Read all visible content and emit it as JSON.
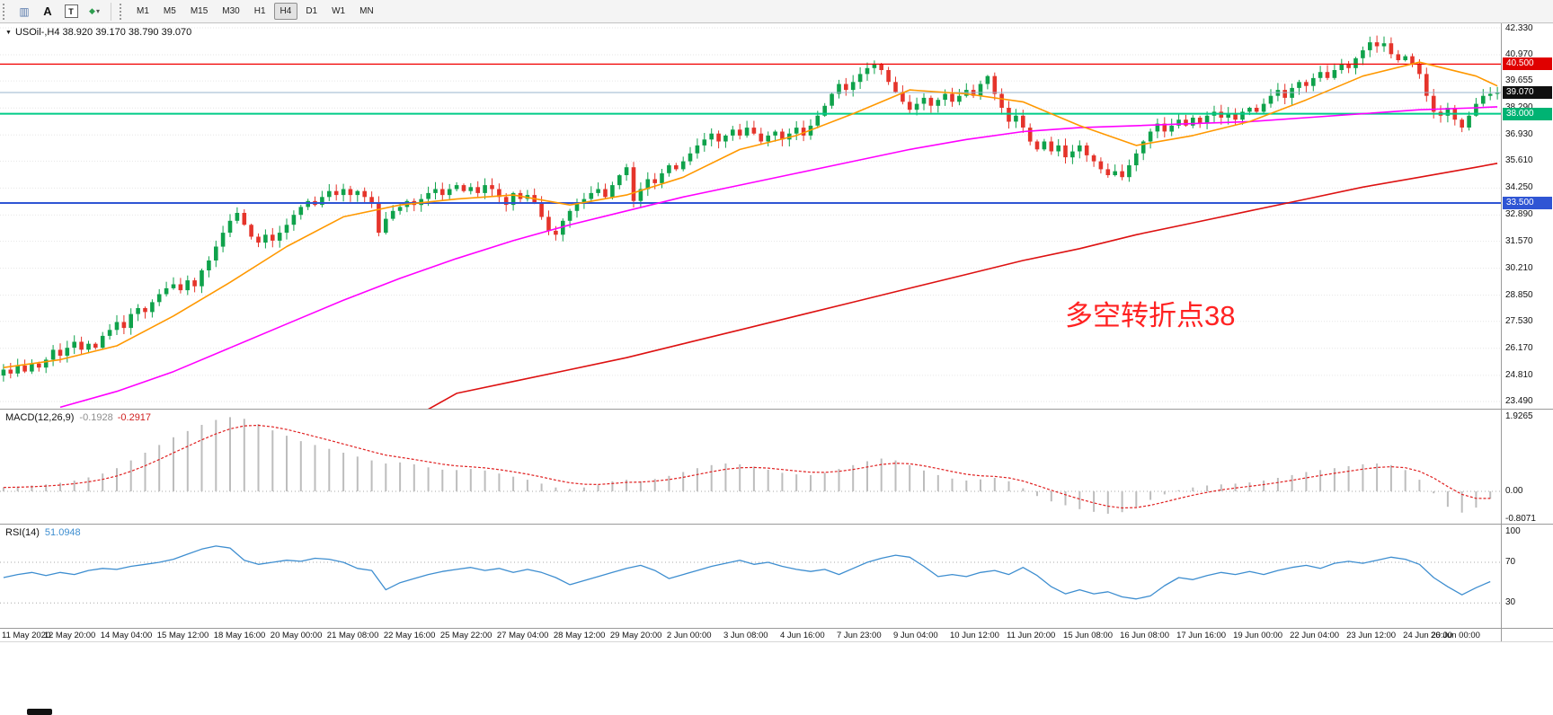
{
  "toolbar": {
    "tools": [
      {
        "name": "chart-windows-icon",
        "glyph": "▥"
      },
      {
        "name": "text-annotation-icon",
        "glyph": "A"
      },
      {
        "name": "text-box-icon",
        "glyph": "T"
      },
      {
        "name": "objects-list-icon",
        "glyph": "◆",
        "caret": "▾"
      }
    ],
    "timeframes": [
      {
        "label": "M1",
        "active": false
      },
      {
        "label": "M5",
        "active": false
      },
      {
        "label": "M15",
        "active": false
      },
      {
        "label": "M30",
        "active": false
      },
      {
        "label": "H1",
        "active": false
      },
      {
        "label": "H4",
        "active": true
      },
      {
        "label": "D1",
        "active": false
      },
      {
        "label": "W1",
        "active": false
      },
      {
        "label": "MN",
        "active": false
      }
    ]
  },
  "chart": {
    "symbol_line": "USOil-,H4 38.920 39.170 38.790 39.070",
    "collapse_icon": "▼",
    "annotation": {
      "text": "多空转折点38",
      "color": "#ff2222"
    },
    "price_max": 42.33,
    "price_min": 23.49,
    "axis_ticks": [
      42.33,
      40.97,
      39.655,
      38.29,
      36.93,
      35.61,
      34.25,
      32.89,
      31.57,
      30.21,
      28.85,
      27.53,
      26.17,
      24.81,
      23.49
    ],
    "levels": [
      {
        "price": 40.5,
        "label": "40.500",
        "color": "#f20000",
        "badge": "#e00000",
        "width": 1.2
      },
      {
        "price": 39.07,
        "label": "39.070",
        "color": "#9ab4cc",
        "badge": "#101010",
        "width": 1
      },
      {
        "price": 38.0,
        "label": "38.000",
        "color": "#00cc88",
        "badge": "#00b373",
        "width": 2
      },
      {
        "price": 33.5,
        "label": "33.500",
        "color": "#2f55d4",
        "badge": "#2f55d4",
        "width": 2
      }
    ],
    "chart_data": {
      "type": "candlestick",
      "symbol": "USOil-",
      "timeframe": "H4",
      "ohlc_note": "H4 closes estimated from chart; opens = prior close",
      "closes": [
        25.1,
        24.9,
        25.3,
        25.0,
        25.4,
        25.2,
        25.6,
        26.1,
        25.8,
        26.2,
        26.5,
        26.1,
        26.4,
        26.2,
        26.8,
        27.1,
        27.5,
        27.2,
        27.9,
        28.2,
        28.0,
        28.5,
        28.9,
        29.2,
        29.4,
        29.1,
        29.6,
        29.3,
        30.1,
        30.6,
        31.3,
        32.0,
        32.6,
        33.0,
        32.4,
        31.8,
        31.5,
        31.9,
        31.6,
        32.0,
        32.4,
        32.9,
        33.3,
        33.6,
        33.4,
        33.8,
        34.1,
        33.9,
        34.2,
        33.9,
        34.1,
        33.8,
        33.5,
        32.0,
        32.7,
        33.1,
        33.3,
        33.6,
        33.4,
        33.7,
        34.0,
        34.2,
        33.9,
        34.2,
        34.4,
        34.1,
        34.3,
        34.0,
        34.4,
        34.2,
        33.8,
        33.4,
        34.0,
        33.7,
        33.9,
        33.5,
        32.8,
        32.1,
        31.9,
        32.6,
        33.1,
        33.5,
        33.7,
        34.0,
        34.2,
        33.8,
        34.4,
        34.9,
        35.3,
        33.6,
        34.2,
        34.7,
        34.5,
        35.0,
        35.4,
        35.2,
        35.6,
        36.0,
        36.4,
        36.7,
        37.0,
        36.6,
        36.9,
        37.2,
        36.9,
        37.3,
        37.0,
        36.6,
        36.9,
        37.1,
        36.7,
        37.0,
        37.3,
        36.9,
        37.4,
        37.9,
        38.4,
        39.0,
        39.5,
        39.2,
        39.6,
        40.0,
        40.3,
        40.5,
        40.2,
        39.6,
        39.1,
        38.6,
        38.2,
        38.5,
        38.8,
        38.4,
        38.7,
        39.0,
        38.6,
        38.9,
        39.2,
        38.9,
        39.5,
        39.9,
        39.0,
        38.3,
        37.6,
        37.9,
        37.3,
        36.6,
        36.2,
        36.6,
        36.1,
        36.4,
        35.8,
        36.1,
        36.4,
        35.9,
        35.6,
        35.2,
        34.9,
        35.1,
        34.8,
        35.4,
        36.0,
        36.6,
        37.1,
        37.5,
        37.1,
        37.4,
        37.7,
        37.4,
        37.8,
        37.5,
        37.9,
        38.1,
        37.8,
        38.0,
        37.7,
        38.1,
        38.3,
        38.1,
        38.5,
        38.9,
        39.2,
        38.8,
        39.3,
        39.6,
        39.4,
        39.8,
        40.1,
        39.8,
        40.2,
        40.5,
        40.3,
        40.8,
        41.2,
        41.6,
        41.4,
        41.55,
        41.0,
        40.7,
        40.9,
        40.5,
        40.0,
        38.9,
        38.1,
        37.9,
        38.3,
        37.7,
        37.3,
        37.9,
        38.5,
        38.9,
        39.0,
        39.07
      ],
      "ma_fast": {
        "idx": [
          0,
          8,
          16,
          24,
          32,
          40,
          48,
          56,
          64,
          72,
          80,
          88,
          96,
          104,
          112,
          120,
          128,
          136,
          144,
          152,
          160,
          168,
          176,
          184,
          192,
          200,
          208,
          211
        ],
        "val": [
          25.2,
          25.6,
          26.3,
          27.8,
          29.5,
          31.3,
          32.8,
          33.4,
          33.7,
          33.9,
          33.4,
          33.9,
          34.8,
          36.2,
          36.9,
          38.0,
          39.2,
          39.0,
          38.6,
          37.4,
          36.4,
          36.9,
          37.6,
          38.7,
          39.9,
          40.6,
          39.9,
          39.4
        ]
      },
      "ma_mid": {
        "idx": [
          8,
          16,
          24,
          32,
          40,
          48,
          56,
          64,
          72,
          80,
          88,
          96,
          104,
          112,
          120,
          128,
          136,
          144,
          152,
          160,
          168,
          176,
          184,
          192,
          200,
          208,
          211
        ],
        "val": [
          23.2,
          24.0,
          25.0,
          26.2,
          27.4,
          28.6,
          29.7,
          30.7,
          31.6,
          32.4,
          33.1,
          33.8,
          34.4,
          35.0,
          35.6,
          36.2,
          36.7,
          37.1,
          37.3,
          37.4,
          37.5,
          37.6,
          37.8,
          38.0,
          38.2,
          38.3,
          38.35
        ]
      },
      "ma_slow": {
        "idx": [
          60,
          64,
          72,
          80,
          88,
          96,
          104,
          112,
          120,
          128,
          136,
          144,
          152,
          160,
          168,
          176,
          184,
          192,
          200,
          208,
          211
        ],
        "val": [
          23.1,
          23.9,
          24.5,
          25.1,
          25.7,
          26.4,
          27.1,
          27.8,
          28.5,
          29.2,
          29.9,
          30.6,
          31.2,
          31.9,
          32.5,
          33.1,
          33.7,
          34.3,
          34.8,
          35.3,
          35.5
        ]
      }
    }
  },
  "macd": {
    "title": "MACD(12,26,9)",
    "value_main": "-0.1928",
    "value_signal": "-0.2917",
    "stride": 2,
    "axis": [
      {
        "v": 1.9265,
        "label": "1.9265"
      },
      {
        "v": 0,
        "label": "0.00"
      },
      {
        "v": -0.8071,
        "label": "-0.8071"
      }
    ],
    "values": [
      0.1,
      0.12,
      0.15,
      0.18,
      0.22,
      0.28,
      0.36,
      0.46,
      0.6,
      0.8,
      1.0,
      1.2,
      1.4,
      1.56,
      1.72,
      1.85,
      1.92,
      1.88,
      1.74,
      1.58,
      1.44,
      1.3,
      1.2,
      1.1,
      1.0,
      0.9,
      0.8,
      0.72,
      0.75,
      0.7,
      0.62,
      0.56,
      0.55,
      0.58,
      0.54,
      0.46,
      0.38,
      0.3,
      0.2,
      0.1,
      0.06,
      0.1,
      0.16,
      0.26,
      0.3,
      0.26,
      0.32,
      0.4,
      0.5,
      0.6,
      0.68,
      0.72,
      0.7,
      0.64,
      0.56,
      0.48,
      0.44,
      0.42,
      0.48,
      0.58,
      0.68,
      0.78,
      0.85,
      0.8,
      0.68,
      0.54,
      0.42,
      0.33,
      0.28,
      0.31,
      0.35,
      0.26,
      0.08,
      -0.12,
      -0.26,
      -0.36,
      -0.46,
      -0.53,
      -0.58,
      -0.54,
      -0.4,
      -0.22,
      -0.08,
      0.03,
      0.1,
      0.15,
      0.18,
      0.2,
      0.23,
      0.28,
      0.35,
      0.42,
      0.5,
      0.55,
      0.6,
      0.65,
      0.7,
      0.72,
      0.68,
      0.55,
      0.3,
      -0.05,
      -0.4,
      -0.55,
      -0.42,
      -0.19
    ]
  },
  "rsi": {
    "title": "RSI(14)",
    "value": "51.0948",
    "stride": 2,
    "levels": [
      70,
      30
    ],
    "axis": [
      {
        "v": 100,
        "label": "100"
      },
      {
        "v": 70,
        "label": "70"
      },
      {
        "v": 30,
        "label": "30"
      }
    ],
    "values": [
      55,
      58,
      60,
      57,
      60,
      58,
      62,
      64,
      63,
      66,
      68,
      70,
      73,
      78,
      83,
      86,
      84,
      72,
      68,
      70,
      72,
      71,
      74,
      73,
      70,
      64,
      62,
      43,
      50,
      54,
      58,
      61,
      63,
      65,
      62,
      64,
      60,
      63,
      60,
      55,
      48,
      52,
      56,
      60,
      64,
      67,
      62,
      54,
      58,
      62,
      66,
      69,
      72,
      68,
      70,
      66,
      63,
      61,
      63,
      58,
      64,
      70,
      74,
      77,
      75,
      66,
      56,
      58,
      56,
      60,
      62,
      58,
      65,
      57,
      46,
      39,
      43,
      39,
      41,
      36,
      34,
      37,
      47,
      55,
      53,
      57,
      60,
      58,
      61,
      58,
      62,
      65,
      67,
      64,
      69,
      71,
      69,
      72,
      75,
      73,
      68,
      55,
      46,
      38,
      45,
      51
    ]
  },
  "time_axis": {
    "labels": [
      {
        "text": "11 May 2020",
        "i": 2
      },
      {
        "text": "12 May 20:00",
        "i": 10
      },
      {
        "text": "14 May 04:00",
        "i": 18
      },
      {
        "text": "15 May 12:00",
        "i": 26
      },
      {
        "text": "18 May 16:00",
        "i": 34
      },
      {
        "text": "20 May 00:00",
        "i": 42
      },
      {
        "text": "21 May 08:00",
        "i": 50
      },
      {
        "text": "22 May 16:00",
        "i": 58
      },
      {
        "text": "25 May 22:00",
        "i": 66
      },
      {
        "text": "27 May 04:00",
        "i": 74
      },
      {
        "text": "28 May 12:00",
        "i": 82
      },
      {
        "text": "29 May 20:00",
        "i": 90
      },
      {
        "text": "2 Jun 00:00",
        "i": 98
      },
      {
        "text": "3 Jun 08:00",
        "i": 106
      },
      {
        "text": "4 Jun 16:00",
        "i": 114
      },
      {
        "text": "7 Jun 23:00",
        "i": 122
      },
      {
        "text": "9 Jun 04:00",
        "i": 130
      },
      {
        "text": "10 Jun 12:00",
        "i": 138
      },
      {
        "text": "11 Jun 20:00",
        "i": 146
      },
      {
        "text": "15 Jun 08:00",
        "i": 154
      },
      {
        "text": "16 Jun 08:00",
        "i": 162
      },
      {
        "text": "17 Jun 16:00",
        "i": 170
      },
      {
        "text": "19 Jun 00:00",
        "i": 178
      },
      {
        "text": "22 Jun 04:00",
        "i": 186
      },
      {
        "text": "23 Jun 12:00",
        "i": 194
      },
      {
        "text": "24 Jun 20:00",
        "i": 202
      },
      {
        "text": "26 Jun 00:00",
        "i": 210
      }
    ]
  },
  "colors": {
    "candle_up": "#0fa24b",
    "candle_down": "#e5342b",
    "ma_fast": "#ff9800",
    "ma_mid": "#ff00ff",
    "ma_slow": "#dd1111",
    "macd_hist": "#bdbdbd",
    "macd_signal": "#e02020",
    "rsi_line": "#3e8ed0",
    "grid": "#e6e6e6"
  }
}
